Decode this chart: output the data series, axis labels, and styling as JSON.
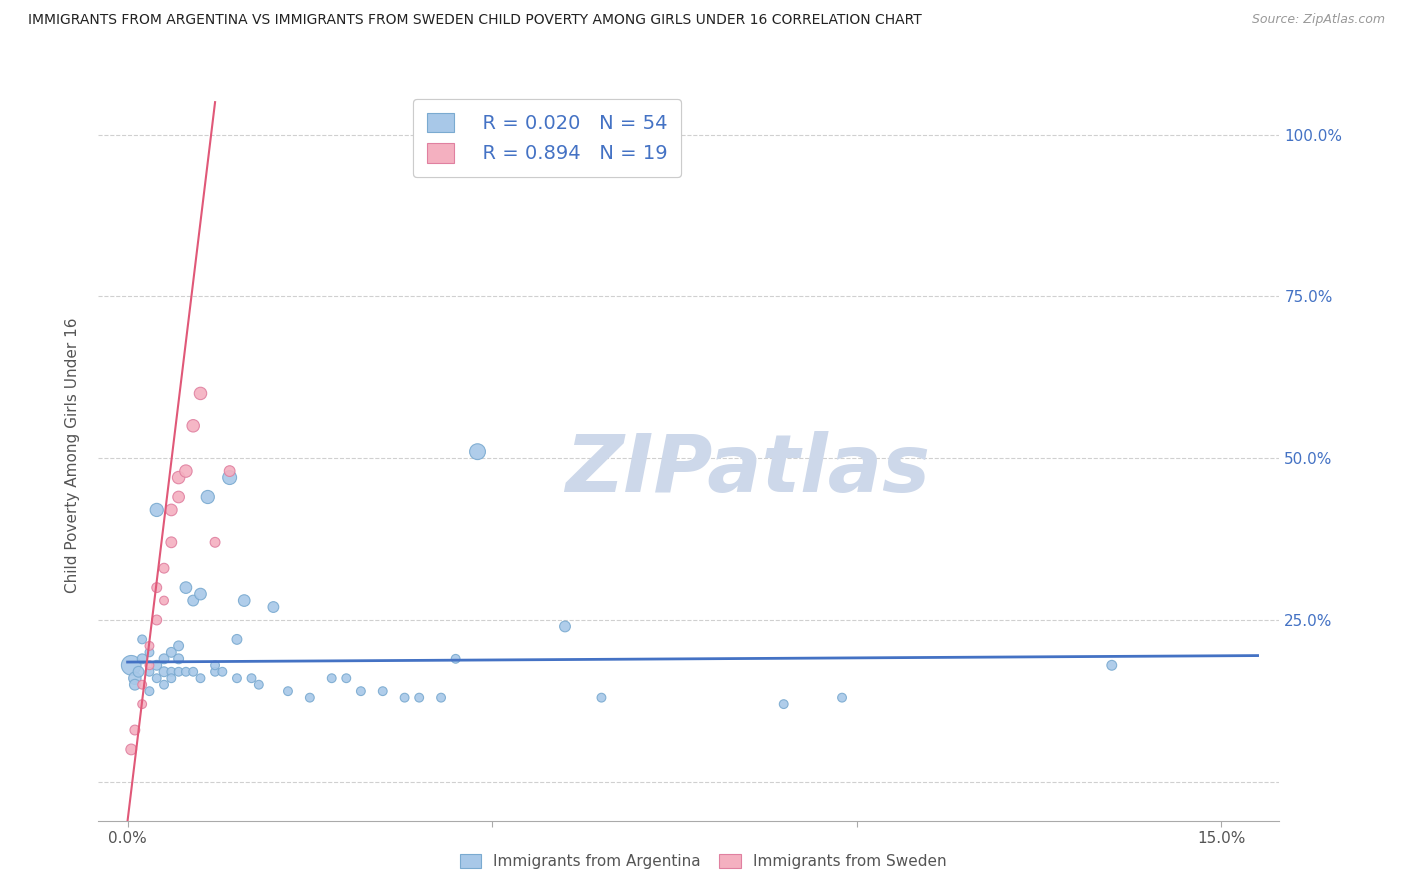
{
  "title": "IMMIGRANTS FROM ARGENTINA VS IMMIGRANTS FROM SWEDEN CHILD POVERTY AMONG GIRLS UNDER 16 CORRELATION CHART",
  "source": "Source: ZipAtlas.com",
  "ylabel": "Child Poverty Among Girls Under 16",
  "x_ticks": [
    0.0,
    0.05,
    0.1,
    0.15
  ],
  "x_tick_labels": [
    "0.0%",
    "",
    "",
    "15.0%"
  ],
  "y_ticks": [
    0.0,
    0.25,
    0.5,
    0.75,
    1.0
  ],
  "y_tick_labels_right": [
    "",
    "25.0%",
    "50.0%",
    "75.0%",
    "100.0%"
  ],
  "xlim": [
    -0.004,
    0.158
  ],
  "ylim": [
    -0.06,
    1.07
  ],
  "background_color": "#ffffff",
  "grid_color": "#d0d0d0",
  "watermark": "ZIPatlas",
  "watermark_color": "#cdd8ea",
  "legend_r1": "R = 0.020",
  "legend_n1": "N = 54",
  "legend_r2": "R = 0.894",
  "legend_n2": "N = 19",
  "argentina_color": "#a8c8e8",
  "sweden_color": "#f4b0c0",
  "argentina_edge": "#7aaad0",
  "sweden_edge": "#e080a0",
  "line_argentina_color": "#4472c4",
  "line_sweden_color": "#e05878",
  "legend_text_color": "#4472c4",
  "legend_label_color": "#555555",
  "legend_label1": "Immigrants from Argentina",
  "legend_label2": "Immigrants from Sweden",
  "argentina_x": [
    0.0005,
    0.001,
    0.001,
    0.0015,
    0.002,
    0.002,
    0.003,
    0.003,
    0.003,
    0.004,
    0.004,
    0.004,
    0.005,
    0.005,
    0.005,
    0.006,
    0.006,
    0.006,
    0.007,
    0.007,
    0.007,
    0.008,
    0.008,
    0.009,
    0.009,
    0.01,
    0.01,
    0.011,
    0.012,
    0.012,
    0.013,
    0.014,
    0.015,
    0.015,
    0.016,
    0.017,
    0.018,
    0.02,
    0.022,
    0.025,
    0.028,
    0.03,
    0.032,
    0.035,
    0.038,
    0.04,
    0.043,
    0.045,
    0.048,
    0.06,
    0.065,
    0.09,
    0.098,
    0.135
  ],
  "argentina_y": [
    0.18,
    0.16,
    0.15,
    0.17,
    0.19,
    0.22,
    0.17,
    0.14,
    0.2,
    0.42,
    0.18,
    0.16,
    0.17,
    0.19,
    0.15,
    0.2,
    0.17,
    0.16,
    0.19,
    0.21,
    0.17,
    0.3,
    0.17,
    0.28,
    0.17,
    0.29,
    0.16,
    0.44,
    0.17,
    0.18,
    0.17,
    0.47,
    0.22,
    0.16,
    0.28,
    0.16,
    0.15,
    0.27,
    0.14,
    0.13,
    0.16,
    0.16,
    0.14,
    0.14,
    0.13,
    0.13,
    0.13,
    0.19,
    0.51,
    0.24,
    0.13,
    0.12,
    0.13,
    0.18
  ],
  "argentina_size": [
    200,
    80,
    60,
    60,
    50,
    40,
    40,
    40,
    40,
    90,
    50,
    40,
    50,
    50,
    40,
    50,
    40,
    40,
    50,
    50,
    40,
    70,
    40,
    60,
    40,
    70,
    40,
    90,
    40,
    40,
    40,
    100,
    50,
    40,
    70,
    40,
    40,
    60,
    40,
    40,
    40,
    40,
    40,
    40,
    40,
    40,
    40,
    40,
    130,
    60,
    40,
    40,
    40,
    50
  ],
  "sweden_x": [
    0.0005,
    0.001,
    0.002,
    0.002,
    0.003,
    0.003,
    0.004,
    0.004,
    0.005,
    0.005,
    0.006,
    0.006,
    0.007,
    0.007,
    0.008,
    0.009,
    0.01,
    0.012,
    0.014
  ],
  "sweden_y": [
    0.05,
    0.08,
    0.12,
    0.15,
    0.18,
    0.21,
    0.25,
    0.3,
    0.33,
    0.28,
    0.37,
    0.42,
    0.44,
    0.47,
    0.48,
    0.55,
    0.6,
    0.37,
    0.48
  ],
  "sweden_size": [
    60,
    50,
    40,
    40,
    40,
    40,
    50,
    50,
    50,
    40,
    60,
    70,
    70,
    80,
    80,
    80,
    80,
    50,
    60
  ],
  "arg_line_x0": 0.0,
  "arg_line_x1": 0.155,
  "arg_line_y0": 0.185,
  "arg_line_y1": 0.195,
  "swe_line_x0": 0.0,
  "swe_line_x1": 0.012,
  "swe_line_y0": -0.06,
  "swe_line_y1": 1.05
}
